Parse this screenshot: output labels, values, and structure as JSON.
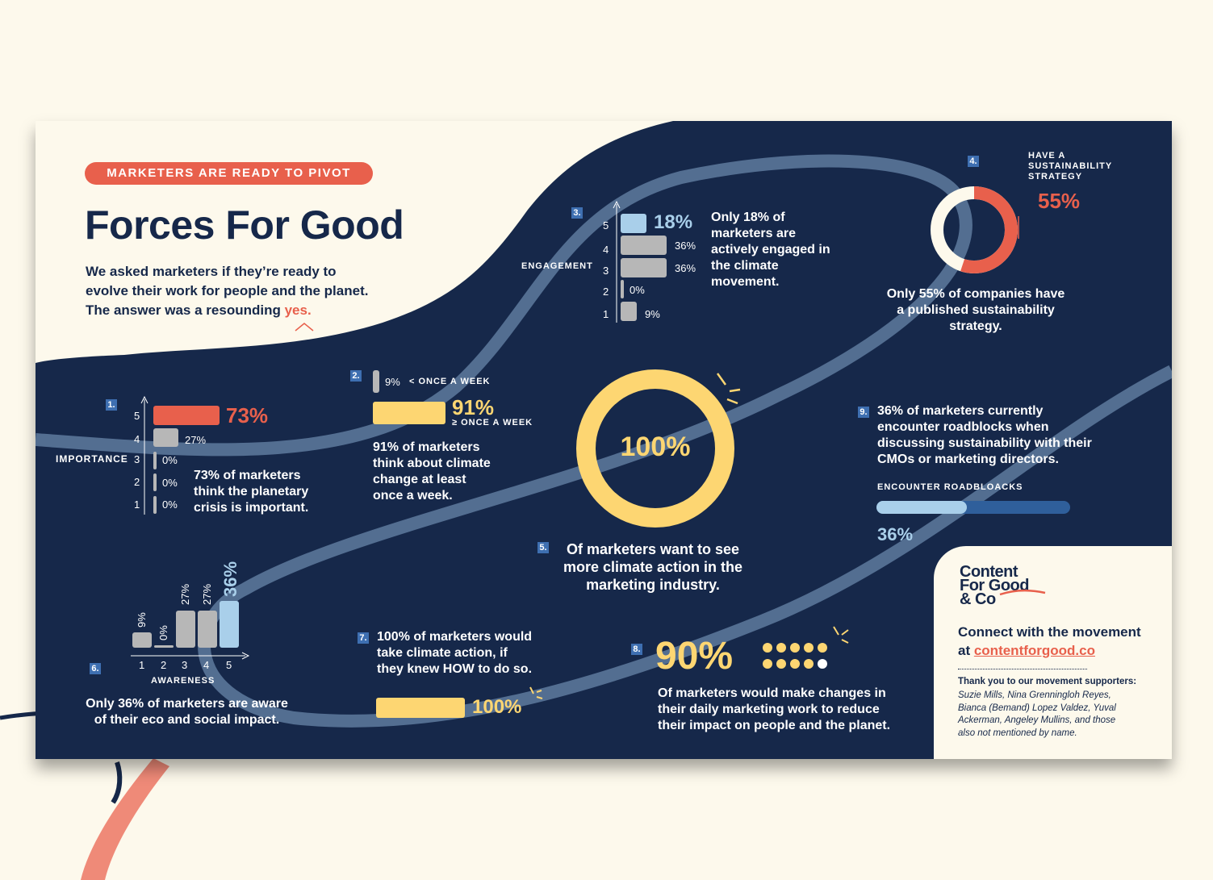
{
  "header": {
    "tag": "MARKETERS ARE READY TO PIVOT",
    "title": "Forces For Good",
    "intro_1": "We asked marketers if they’re ready to",
    "intro_2": "evolve their work for people and the planet.",
    "intro_3": "The answer was a resounding ",
    "intro_yes": "yes."
  },
  "colors": {
    "navy": "#16284a",
    "coral": "#e8604c",
    "yellow": "#fdd672",
    "light_blue": "#a9cfea",
    "gray": "#b7b7b7",
    "mid_blue": "#3e6fb1",
    "cream": "#fdf9ec"
  },
  "stat1": {
    "num": "1.",
    "axis_label": "IMPORTANCE",
    "highlight": "73%",
    "labels": [
      "27%",
      "0%",
      "0%",
      "0%"
    ],
    "text": [
      "73% of marketers",
      "think the planetary",
      "crisis is important."
    ]
  },
  "stat2": {
    "num": "2.",
    "small_pct": "9%",
    "small_label": "< ONCE A WEEK",
    "big_pct": "91%",
    "big_label": "≥ ONCE A WEEK",
    "text": [
      "91% of marketers",
      "think about climate",
      "change at least",
      "once a week."
    ]
  },
  "stat3": {
    "num": "3.",
    "axis_label": "ENGAGEMENT",
    "highlight": "18%",
    "labels": [
      "36%",
      "36%",
      "0%",
      "9%"
    ],
    "text": [
      "Only 18% of",
      "marketers are",
      "actively engaged in",
      "the climate",
      "movement."
    ]
  },
  "stat4": {
    "num": "4.",
    "label": [
      "HAVE A",
      "SUSTAINABILITY",
      "STRATEGY"
    ],
    "pct": "55%",
    "text": [
      "Only 55% of companies have",
      "a published sustainability",
      "strategy."
    ]
  },
  "stat5": {
    "num": "5.",
    "pct": "100%",
    "text": [
      "Of marketers want to see",
      "more climate action in the",
      "marketing industry."
    ]
  },
  "stat6": {
    "num": "6.",
    "axis_label": "AWARENESS",
    "labels": [
      "9%",
      "0%",
      "27%",
      "27%"
    ],
    "highlight": "36%",
    "text": [
      "Only 36% of marketers are aware",
      "of their eco and social impact."
    ]
  },
  "stat7": {
    "num": "7.",
    "text": [
      "100% of marketers would",
      "take climate action, if",
      "they knew HOW to do so."
    ],
    "pct": "100%"
  },
  "stat8": {
    "num": "8.",
    "pct": "90%",
    "text": [
      "Of marketers would make changes in",
      "their daily marketing work to reduce",
      "their impact on people and the planet."
    ]
  },
  "stat9": {
    "num": "9.",
    "text": [
      "36% of marketers currently",
      "encounter roadblocks when",
      "discussing sustainability with their",
      "CMOs or marketing directors."
    ],
    "bar_label": "ENCOUNTER ROADBLOACKS",
    "pct": "36%"
  },
  "promo": {
    "logo": [
      "Content",
      "For Good",
      "& Co"
    ],
    "connect_1": "Connect with the movement",
    "connect_at": "at ",
    "link": "contentforgood.co",
    "thanks": "Thank you to our movement supporters:",
    "supporters": [
      "Suzie Mills, Nina Grenningloh Reyes,",
      "Bianca (Bemand) Lopez Valdez, Yuval",
      "Ackerman, Angeley Mullins, and those",
      "also not mentioned by name."
    ]
  },
  "chart_data": [
    {
      "type": "bar",
      "title": "",
      "xlabel": "",
      "ylabel": "IMPORTANCE",
      "categories": [
        "5",
        "4",
        "3",
        "2",
        "1"
      ],
      "values": [
        73,
        27,
        0,
        0,
        0
      ]
    },
    {
      "type": "bar",
      "categories": [
        "< ONCE A WEEK",
        "≥ ONCE A WEEK"
      ],
      "values": [
        9,
        91
      ]
    },
    {
      "type": "bar",
      "ylabel": "ENGAGEMENT",
      "categories": [
        "5",
        "4",
        "3",
        "2",
        "1"
      ],
      "values": [
        18,
        36,
        36,
        0,
        9
      ]
    },
    {
      "type": "pie",
      "title": "HAVE A SUSTAINABILITY STRATEGY",
      "values": [
        55,
        45
      ]
    },
    {
      "type": "pie",
      "values": [
        100
      ]
    },
    {
      "type": "bar",
      "xlabel": "AWARENESS",
      "categories": [
        "1",
        "2",
        "3",
        "4",
        "5"
      ],
      "values": [
        9,
        0,
        27,
        27,
        36
      ]
    },
    {
      "type": "bar",
      "values": [
        100
      ]
    },
    {
      "type": "bar",
      "values": [
        90
      ]
    },
    {
      "type": "bar",
      "title": "ENCOUNTER ROADBLOACKS",
      "values": [
        36
      ]
    }
  ]
}
